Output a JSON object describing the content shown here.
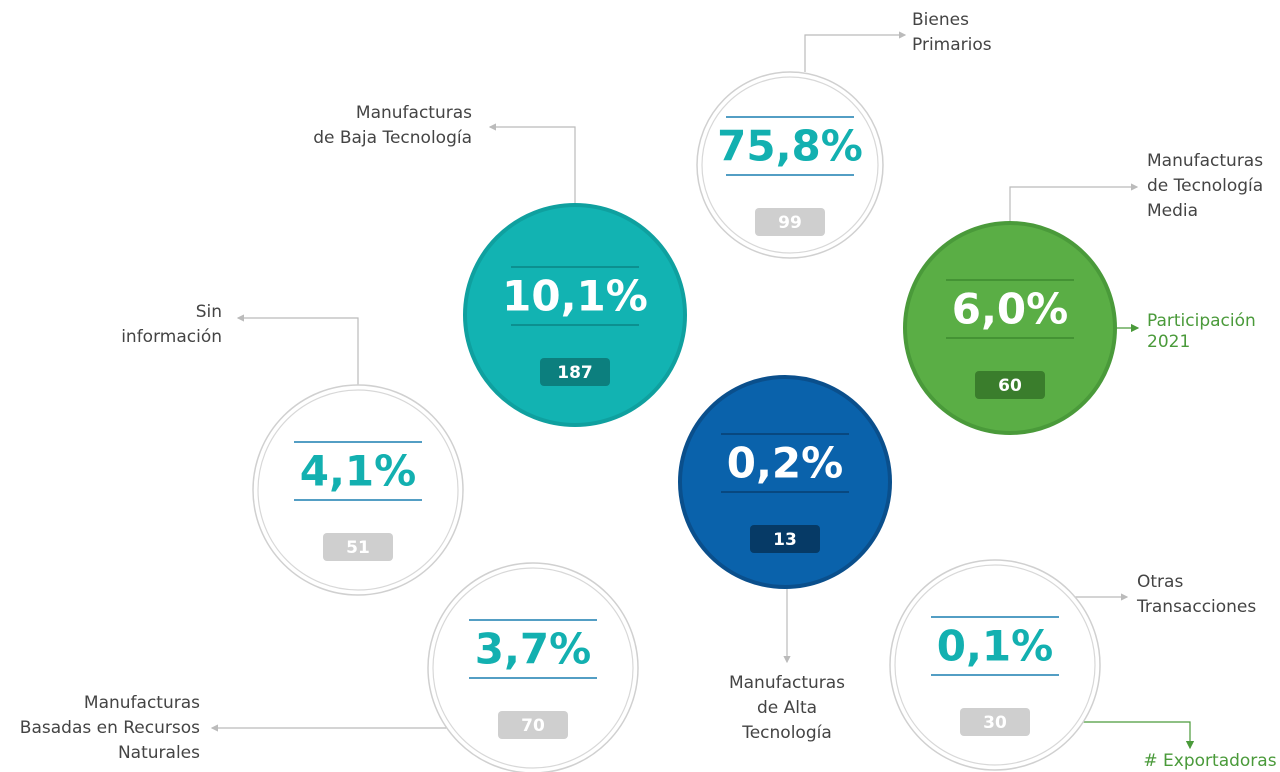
{
  "items": [
    {
      "label": [
        "Bienes",
        "Primarios"
      ],
      "share": "75,8%",
      "count": "99"
    },
    {
      "label": [
        "Manufacturas",
        "de Baja Tecnología"
      ],
      "share": "10,1%",
      "count": "187"
    },
    {
      "label": [
        "Manufacturas",
        "de Tecnología",
        "Media"
      ],
      "share": "6,0%",
      "count": "60"
    },
    {
      "label": [
        "Sin",
        "información"
      ],
      "share": "4,1%",
      "count": "51"
    },
    {
      "label": [
        "Manufacturas",
        "de Alta",
        "Tecnología"
      ],
      "share": "0,2%",
      "count": "13"
    },
    {
      "label": [
        "Manufacturas",
        "Basadas en Recursos",
        "Naturales"
      ],
      "share": "3,7%",
      "count": "70"
    },
    {
      "label": [
        "Otras",
        "Transacciones"
      ],
      "share": "0,1%",
      "count": "30"
    }
  ],
  "legend": {
    "share_label": [
      "Participación",
      "2021"
    ],
    "count_label": "# Exportadoras"
  }
}
